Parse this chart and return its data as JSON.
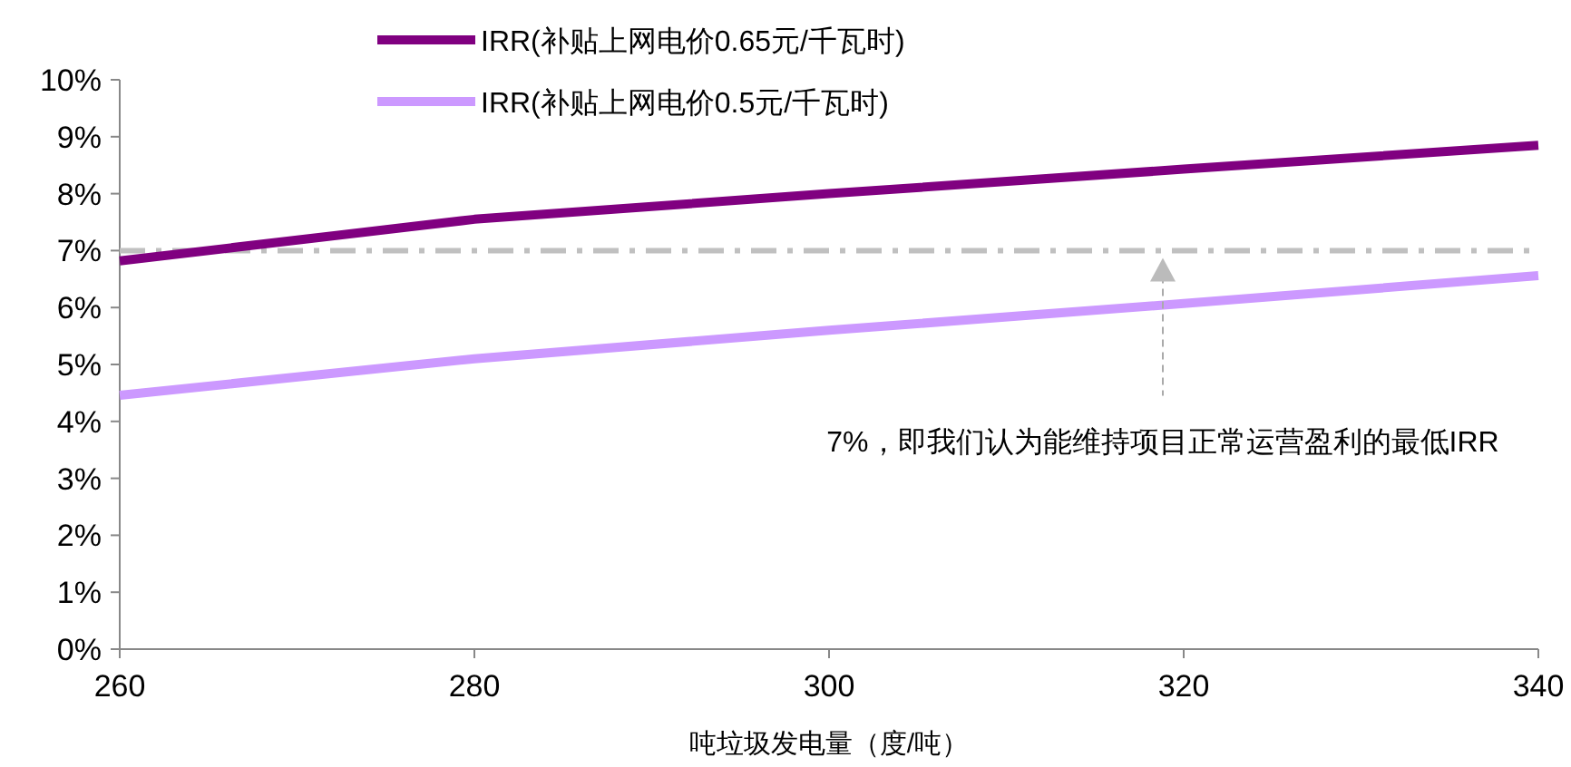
{
  "chart_data": {
    "type": "line",
    "xlabel": "吨垃圾发电量（度/吨）",
    "x": [
      260,
      280,
      300,
      320,
      340
    ],
    "series": [
      {
        "name": "IRR(补贴上网电价0.65元/千瓦时)",
        "color": "#800080",
        "values": [
          6.82,
          7.55,
          8.0,
          8.43,
          8.85
        ]
      },
      {
        "name": "IRR(补贴上网电价0.5元/千瓦时)",
        "color": "#cc99ff",
        "values": [
          4.46,
          5.1,
          5.6,
          6.07,
          6.56
        ]
      }
    ],
    "xlim": [
      260,
      340
    ],
    "xticks": [
      260,
      280,
      300,
      320,
      340
    ],
    "ylim": [
      0,
      10
    ],
    "yticks": [
      {
        "value": 0,
        "label": "0%"
      },
      {
        "value": 1,
        "label": "1%"
      },
      {
        "value": 2,
        "label": "2%"
      },
      {
        "value": 3,
        "label": "3%"
      },
      {
        "value": 4,
        "label": "4%"
      },
      {
        "value": 5,
        "label": "5%"
      },
      {
        "value": 6,
        "label": "6%"
      },
      {
        "value": 7,
        "label": "7%"
      },
      {
        "value": 8,
        "label": "8%"
      },
      {
        "value": 9,
        "label": "9%"
      },
      {
        "value": 10,
        "label": "10%"
      }
    ],
    "ref_lines": [
      {
        "axis": "y",
        "value": 7,
        "color": "#c0c0c0",
        "line_style": "dashdot"
      }
    ],
    "annotations": [
      "7%，即我们认为能维持项目正常运营盈利的最低IRR"
    ],
    "grid": false,
    "legend": "top",
    "marker": "none",
    "line_style": "solid"
  }
}
